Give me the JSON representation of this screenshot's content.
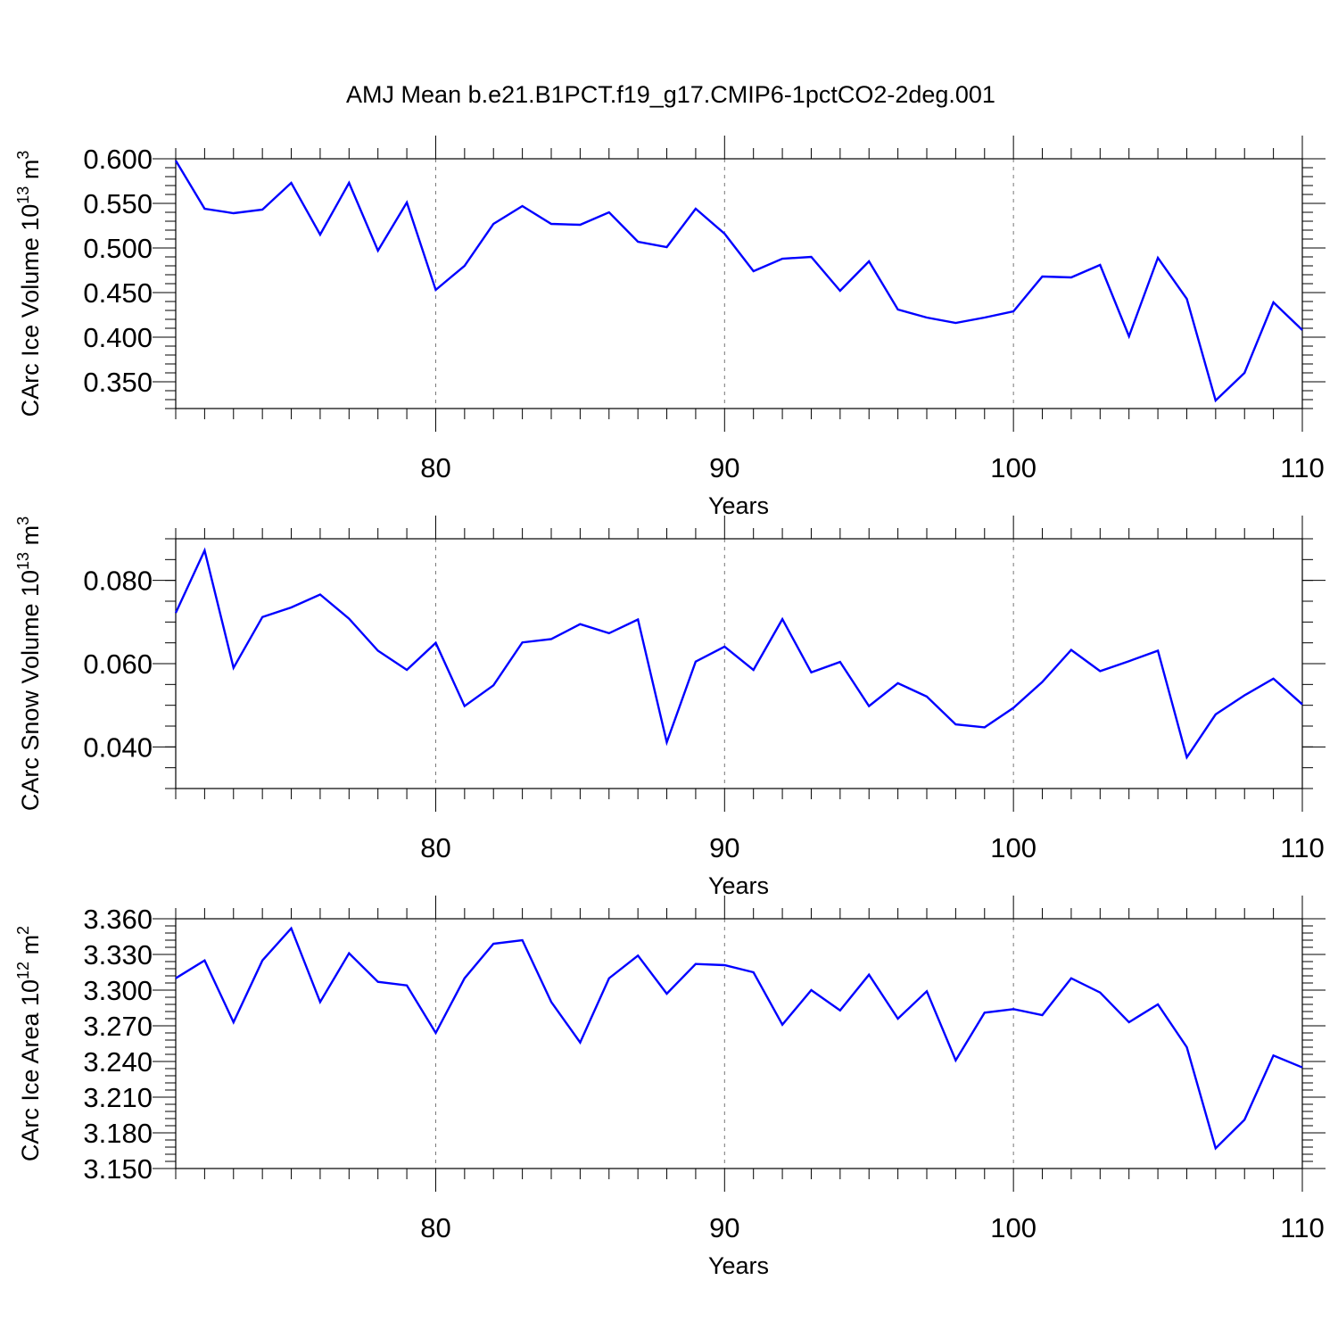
{
  "title": "AMJ Mean b.e21.B1PCT.f19_g17.CMIP6-1pctCO2-2deg.001",
  "colors": {
    "line": "#0000ff",
    "axis": "#000000",
    "grid": "#777777",
    "background": "#ffffff"
  },
  "chart_data": [
    {
      "type": "line",
      "ylabel": "CArc Ice Volume 10",
      "ylabel_sup": "13",
      "ylabel_unit": "m",
      "ylabel_unit_sup": "3",
      "xlabel": "Years",
      "xlim": [
        71,
        110
      ],
      "ylim": [
        0.32,
        0.6
      ],
      "x_ticks": [
        80,
        90,
        100,
        110
      ],
      "x_tick_labels": [
        "80",
        "90",
        "100",
        "110"
      ],
      "y_ticks": [
        0.35,
        0.4,
        0.45,
        0.5,
        0.55,
        0.6
      ],
      "y_tick_labels": [
        "0.350",
        "0.400",
        "0.450",
        "0.500",
        "0.550",
        "0.600"
      ],
      "y_minor_step": 0.01,
      "grid": "dashed vertical at major x ticks",
      "series": [
        {
          "x": [
            71,
            72,
            73,
            74,
            75,
            76,
            77,
            78,
            79,
            80,
            81,
            82,
            83,
            84,
            85,
            86,
            87,
            88,
            89,
            90,
            91,
            92,
            93,
            94,
            95,
            96,
            97,
            98,
            99,
            100,
            101,
            102,
            103,
            104,
            105,
            106,
            107,
            108,
            109,
            110
          ],
          "values": [
            0.598,
            0.544,
            0.539,
            0.543,
            0.573,
            0.515,
            0.573,
            0.497,
            0.551,
            0.453,
            0.48,
            0.527,
            0.547,
            0.527,
            0.526,
            0.54,
            0.507,
            0.501,
            0.544,
            0.516,
            0.474,
            0.488,
            0.49,
            0.452,
            0.485,
            0.431,
            0.422,
            0.416,
            0.422,
            0.429,
            0.468,
            0.467,
            0.481,
            0.401,
            0.489,
            0.443,
            0.329,
            0.36,
            0.439,
            0.408
          ]
        }
      ]
    },
    {
      "type": "line",
      "ylabel": "CArc Snow Volume 10",
      "ylabel_sup": "13",
      "ylabel_unit": "m",
      "ylabel_unit_sup": "3",
      "xlabel": "Years",
      "xlim": [
        71,
        110
      ],
      "ylim": [
        0.03,
        0.09
      ],
      "x_ticks": [
        80,
        90,
        100,
        110
      ],
      "x_tick_labels": [
        "80",
        "90",
        "100",
        "110"
      ],
      "y_ticks": [
        0.04,
        0.06,
        0.08
      ],
      "y_tick_labels": [
        "0.040",
        "0.060",
        "0.080"
      ],
      "y_minor_step": 0.005,
      "grid": "dashed vertical at major x ticks",
      "series": [
        {
          "x": [
            71,
            72,
            73,
            74,
            75,
            76,
            77,
            78,
            79,
            80,
            81,
            82,
            83,
            84,
            85,
            86,
            87,
            88,
            89,
            90,
            91,
            92,
            93,
            94,
            95,
            96,
            97,
            98,
            99,
            100,
            101,
            102,
            103,
            104,
            105,
            106,
            107,
            108,
            109,
            110
          ],
          "values": [
            0.0722,
            0.0872,
            0.059,
            0.0712,
            0.0735,
            0.0766,
            0.0708,
            0.0631,
            0.0585,
            0.065,
            0.0498,
            0.0548,
            0.0651,
            0.0659,
            0.0695,
            0.0673,
            0.0706,
            0.0411,
            0.0605,
            0.0641,
            0.0585,
            0.0707,
            0.0579,
            0.0604,
            0.0498,
            0.0553,
            0.0521,
            0.0454,
            0.0447,
            0.0494,
            0.0556,
            0.0633,
            0.0582,
            0.0606,
            0.0631,
            0.0375,
            0.0478,
            0.0524,
            0.0564,
            0.0502
          ]
        }
      ]
    },
    {
      "type": "line",
      "ylabel": "CArc Ice Area 10",
      "ylabel_sup": "12",
      "ylabel_unit": "m",
      "ylabel_unit_sup": "2",
      "xlabel": "Years",
      "xlim": [
        71,
        110
      ],
      "ylim": [
        3.15,
        3.36
      ],
      "x_ticks": [
        80,
        90,
        100,
        110
      ],
      "x_tick_labels": [
        "80",
        "90",
        "100",
        "110"
      ],
      "y_ticks": [
        3.15,
        3.18,
        3.21,
        3.24,
        3.27,
        3.3,
        3.33,
        3.36
      ],
      "y_tick_labels": [
        "3.150",
        "3.180",
        "3.210",
        "3.240",
        "3.270",
        "3.300",
        "3.330",
        "3.360"
      ],
      "y_minor_step": 0.006,
      "grid": "dashed vertical at major x ticks",
      "series": [
        {
          "x": [
            71,
            72,
            73,
            74,
            75,
            76,
            77,
            78,
            79,
            80,
            81,
            82,
            83,
            84,
            85,
            86,
            87,
            88,
            89,
            90,
            91,
            92,
            93,
            94,
            95,
            96,
            97,
            98,
            99,
            100,
            101,
            102,
            103,
            104,
            105,
            106,
            107,
            108,
            109,
            110
          ],
          "values": [
            3.31,
            3.325,
            3.273,
            3.325,
            3.352,
            3.29,
            3.331,
            3.307,
            3.304,
            3.264,
            3.31,
            3.339,
            3.342,
            3.29,
            3.256,
            3.31,
            3.329,
            3.297,
            3.322,
            3.321,
            3.315,
            3.271,
            3.3,
            3.283,
            3.313,
            3.276,
            3.299,
            3.241,
            3.281,
            3.284,
            3.279,
            3.31,
            3.298,
            3.273,
            3.288,
            3.252,
            3.167,
            3.191,
            3.245,
            3.235
          ]
        }
      ]
    }
  ]
}
